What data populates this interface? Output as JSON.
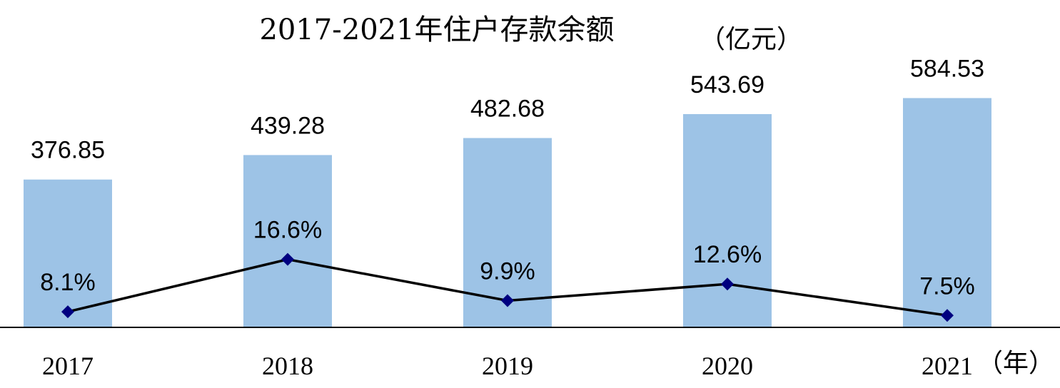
{
  "chart_data": {
    "type": "bar",
    "title": "2017-2021年住户存款余额",
    "unit": "（亿元）",
    "x_unit": "（年）",
    "categories": [
      "2017",
      "2018",
      "2019",
      "2020",
      "2021"
    ],
    "series": [
      {
        "type": "bar",
        "values": [
          376.85,
          439.28,
          482.68,
          543.69,
          584.53
        ],
        "labels": [
          "376.85",
          "439.28",
          "482.68",
          "543.69",
          "584.53"
        ],
        "color": "#9dc3e6"
      },
      {
        "type": "line",
        "values": [
          8.1,
          16.6,
          9.9,
          12.6,
          7.5
        ],
        "labels": [
          "8.1%",
          "16.6%",
          "9.9%",
          "12.6%",
          "7.5%"
        ],
        "line_color": "#000000",
        "marker_color": "#000080"
      }
    ],
    "bar_ylim": [
      0,
      600
    ],
    "line_ylim": [
      0,
      30
    ],
    "legend": "none",
    "grid": false,
    "axis_color": "#000000"
  }
}
